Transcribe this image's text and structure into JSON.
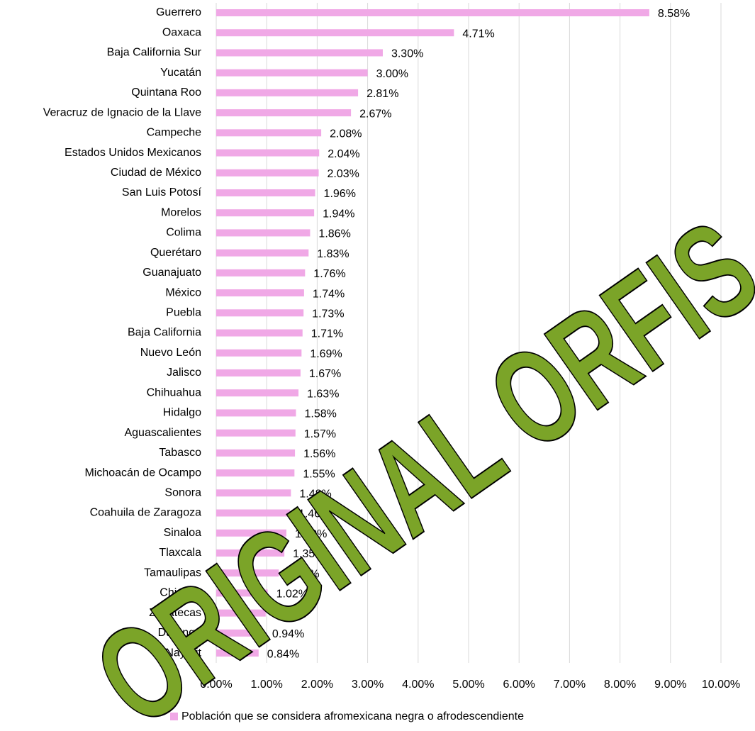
{
  "chart_data": {
    "type": "bar",
    "orientation": "horizontal",
    "categories": [
      "Guerrero",
      "Oaxaca",
      "Baja California Sur",
      "Yucatán",
      "Quintana Roo",
      "Veracruz de Ignacio de la Llave",
      "Campeche",
      "Estados Unidos Mexicanos",
      "Ciudad de México",
      "San Luis Potosí",
      "Morelos",
      "Colima",
      "Querétaro",
      "Guanajuato",
      "México",
      "Puebla",
      "Baja California",
      "Nuevo León",
      "Jalisco",
      "Chihuahua",
      "Hidalgo",
      "Aguascalientes",
      "Tabasco",
      "Michoacán de Ocampo",
      "Sonora",
      "Coahuila de Zaragoza",
      "Sinaloa",
      "Tlaxcala",
      "Tamaulipas",
      "Chiapas",
      "Zacatecas",
      "Durango",
      "Nayarit"
    ],
    "series": [
      {
        "name": "Población que se considera afromexicana negra o afrodescendiente",
        "color": "#f0a8e6",
        "values": [
          8.58,
          4.71,
          3.3,
          3.0,
          2.81,
          2.67,
          2.08,
          2.04,
          2.03,
          1.96,
          1.94,
          1.86,
          1.83,
          1.76,
          1.74,
          1.73,
          1.71,
          1.69,
          1.67,
          1.63,
          1.58,
          1.57,
          1.56,
          1.55,
          1.48,
          1.46,
          1.39,
          1.35,
          1.24,
          1.02,
          0.98,
          0.94,
          0.84
        ],
        "value_labels": [
          "8.58%",
          "4.71%",
          "3.30%",
          "3.00%",
          "2.81%",
          "2.67%",
          "2.08%",
          "2.04%",
          "2.03%",
          "1.96%",
          "1.94%",
          "1.86%",
          "1.83%",
          "1.76%",
          "1.74%",
          "1.73%",
          "1.71%",
          "1.69%",
          "1.67%",
          "1.63%",
          "1.58%",
          "1.57%",
          "1.56%",
          "1.55%",
          "1.48%",
          "1.46%",
          "1.39%",
          "1.35%",
          "1.24%",
          "1.02%",
          "0.98%",
          "0.94%",
          "0.84%"
        ]
      }
    ],
    "xlim": [
      0,
      10
    ],
    "xticks": [
      {
        "value": 0,
        "label": "0.00%"
      },
      {
        "value": 1,
        "label": "1.00%"
      },
      {
        "value": 2,
        "label": "2.00%"
      },
      {
        "value": 3,
        "label": "3.00%"
      },
      {
        "value": 4,
        "label": "4.00%"
      },
      {
        "value": 5,
        "label": "5.00%"
      },
      {
        "value": 6,
        "label": "6.00%"
      },
      {
        "value": 7,
        "label": "7.00%"
      },
      {
        "value": 8,
        "label": "8.00%"
      },
      {
        "value": 9,
        "label": "9.00%"
      },
      {
        "value": 10,
        "label": "10.00%"
      }
    ],
    "grid": true,
    "legend": "bottom",
    "annotations": [
      "ORIGINAL ORFIS"
    ]
  }
}
